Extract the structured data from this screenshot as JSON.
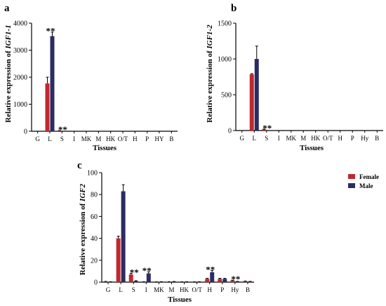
{
  "colors": {
    "female": "#c0282f",
    "male": "#2b2c63",
    "axis": "#000000"
  },
  "legend": {
    "female_label": "Female",
    "male_label": "Male"
  },
  "chart_data": [
    {
      "panel": "a",
      "type": "bar",
      "xlabel": "Tissues",
      "ylabel_prefix": "Relative expression of ",
      "ylabel_gene": "IGF1-1",
      "ylim": [
        0,
        4000
      ],
      "yticks": [
        0,
        1000,
        2000,
        3000,
        4000
      ],
      "categories": [
        "G",
        "L",
        "S",
        "I",
        "MK",
        "M",
        "HK",
        "O/T",
        "H",
        "P",
        "HY",
        "B"
      ],
      "series": [
        {
          "name": "Female",
          "values": [
            0,
            1770,
            20,
            0,
            0,
            0,
            0,
            0,
            0,
            0,
            0,
            0
          ],
          "errors": [
            0,
            230,
            5,
            0,
            0,
            0,
            0,
            0,
            0,
            0,
            0,
            0
          ]
        },
        {
          "name": "Male",
          "values": [
            0,
            3520,
            0,
            0,
            0,
            0,
            0,
            0,
            0,
            0,
            0,
            0
          ],
          "errors": [
            0,
            150,
            0,
            0,
            0,
            0,
            0,
            0,
            0,
            0,
            0,
            0
          ]
        }
      ],
      "annotations": [
        {
          "category": "L",
          "text": "**"
        },
        {
          "category": "S",
          "text": "**"
        }
      ]
    },
    {
      "panel": "b",
      "type": "bar",
      "xlabel": "Tissues",
      "ylabel_prefix": "Relative expression of ",
      "ylabel_gene": "IGF1-2",
      "ylim": [
        0,
        1500
      ],
      "yticks": [
        0,
        500,
        1000,
        1500
      ],
      "categories": [
        "G",
        "L",
        "S",
        "I",
        "MK",
        "M",
        "HK",
        "O/T",
        "H",
        "P",
        "Hy",
        "B"
      ],
      "series": [
        {
          "name": "Female",
          "values": [
            0,
            785,
            15,
            0,
            0,
            0,
            0,
            0,
            0,
            0,
            0,
            0
          ],
          "errors": [
            0,
            10,
            5,
            0,
            0,
            0,
            0,
            0,
            0,
            0,
            0,
            0
          ]
        },
        {
          "name": "Male",
          "values": [
            0,
            1000,
            0,
            0,
            0,
            0,
            0,
            0,
            0,
            0,
            0,
            0
          ],
          "errors": [
            0,
            180,
            0,
            0,
            0,
            0,
            0,
            0,
            0,
            0,
            0,
            0
          ]
        }
      ],
      "annotations": [
        {
          "category": "S",
          "text": "**"
        }
      ]
    },
    {
      "panel": "c",
      "type": "bar",
      "xlabel": "Tissues",
      "ylabel_prefix": "Relative expression of ",
      "ylabel_gene": "IGF2",
      "ylim": [
        0,
        100
      ],
      "yticks": [
        0,
        20,
        40,
        60,
        80,
        100
      ],
      "categories": [
        "G",
        "L",
        "S",
        "I",
        "MK",
        "M",
        "HK",
        "O/T",
        "H",
        "P",
        "Hy",
        "B"
      ],
      "series": [
        {
          "name": "Female",
          "values": [
            0.5,
            40,
            7,
            0.3,
            0.2,
            0.3,
            0.2,
            0.2,
            3,
            3,
            1.5,
            0.8
          ],
          "errors": [
            0.2,
            2,
            1,
            0.1,
            0.1,
            0.1,
            0.1,
            0.1,
            0.5,
            0.5,
            0.3,
            0.2
          ]
        },
        {
          "name": "Male",
          "values": [
            0.3,
            83,
            1,
            8,
            0.3,
            0.5,
            0.3,
            0.3,
            9,
            3,
            0.5,
            0.5
          ],
          "errors": [
            0.1,
            6,
            0.3,
            1.5,
            0.1,
            0.1,
            0.1,
            0.1,
            1.5,
            0.5,
            0.2,
            0.2
          ]
        }
      ],
      "annotations": [
        {
          "category": "S",
          "text": "**"
        },
        {
          "category": "I",
          "text": "**"
        },
        {
          "category": "H",
          "text": "**"
        },
        {
          "category": "Hy",
          "text": "**"
        }
      ]
    }
  ]
}
